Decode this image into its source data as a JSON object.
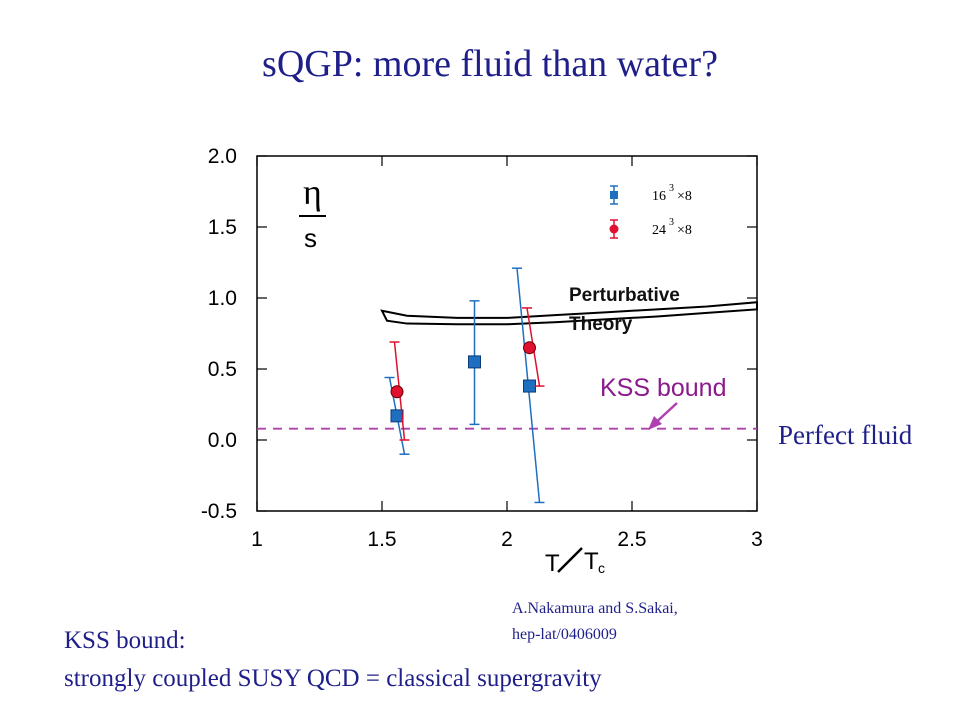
{
  "slide": {
    "title": "sQGP: more fluid than water?",
    "perfect_fluid_label": "Perfect fluid",
    "citation_line1": "A.Nakamura and S.Sakai,",
    "citation_line2": "hep-lat/0406009",
    "kss_note_line1": "KSS bound:",
    "kss_note_line2": "strongly coupled SUSY QCD = classical supergravity"
  },
  "chart_data": {
    "type": "scatter",
    "xlabel_main": "T",
    "xlabel_sub": "c",
    "ylabel_top": "η",
    "ylabel_bottom": "s",
    "xlim": [
      1,
      3
    ],
    "ylim": [
      -0.5,
      2.0
    ],
    "x_ticks": [
      "1",
      "1.5",
      "2",
      "2.5",
      "3"
    ],
    "y_ticks": [
      "2.0",
      "1.5",
      "1.0",
      "0.5",
      "0.0",
      "-0.5"
    ],
    "x_tick_values": [
      1,
      1.5,
      2,
      2.5,
      3
    ],
    "y_tick_values": [
      2.0,
      1.5,
      1.0,
      0.5,
      0.0,
      -0.5
    ],
    "series": [
      {
        "name_base": "16",
        "name_exp": "3",
        "name_tail": "×8",
        "marker": "square",
        "color": "#1f6fc0",
        "points": [
          {
            "x": 1.56,
            "y": 0.17,
            "ylo": -0.1,
            "yhi": 0.44,
            "xlo": 1.53,
            "xhi": 1.59
          },
          {
            "x": 1.87,
            "y": 0.55,
            "ylo": 0.11,
            "yhi": 0.98,
            "xlo": 1.87,
            "xhi": 1.87
          },
          {
            "x": 2.09,
            "y": 0.38,
            "ylo": -0.44,
            "yhi": 1.21,
            "xlo": 2.04,
            "xhi": 2.13
          }
        ]
      },
      {
        "name_base": "24",
        "name_exp": "3",
        "name_tail": "×8",
        "marker": "circle",
        "color": "#e01030",
        "points": [
          {
            "x": 1.56,
            "y": 0.34,
            "ylo": 0.0,
            "yhi": 0.69,
            "xlo": 1.55,
            "xhi": 1.59
          },
          {
            "x": 2.09,
            "y": 0.65,
            "ylo": 0.38,
            "yhi": 0.93,
            "xlo": 2.08,
            "xhi": 2.13
          }
        ]
      }
    ],
    "perturbative": {
      "label_line1": "Perturbative",
      "label_line2": "Theory",
      "upper": [
        [
          1.5,
          0.91
        ],
        [
          1.6,
          0.875
        ],
        [
          1.8,
          0.86
        ],
        [
          2.0,
          0.86
        ],
        [
          2.2,
          0.88
        ],
        [
          2.4,
          0.9
        ],
        [
          2.6,
          0.92
        ],
        [
          2.8,
          0.94
        ],
        [
          3.0,
          0.97
        ]
      ],
      "lower": [
        [
          1.52,
          0.84
        ],
        [
          1.6,
          0.82
        ],
        [
          1.8,
          0.815
        ],
        [
          2.0,
          0.815
        ],
        [
          2.2,
          0.83
        ],
        [
          2.4,
          0.85
        ],
        [
          2.6,
          0.87
        ],
        [
          2.8,
          0.895
        ],
        [
          3.0,
          0.92
        ]
      ]
    },
    "kss_bound": {
      "label": "KSS bound",
      "value": 0.0796,
      "color": "#b040b0"
    },
    "grid": false,
    "legend_position": "top-right"
  }
}
